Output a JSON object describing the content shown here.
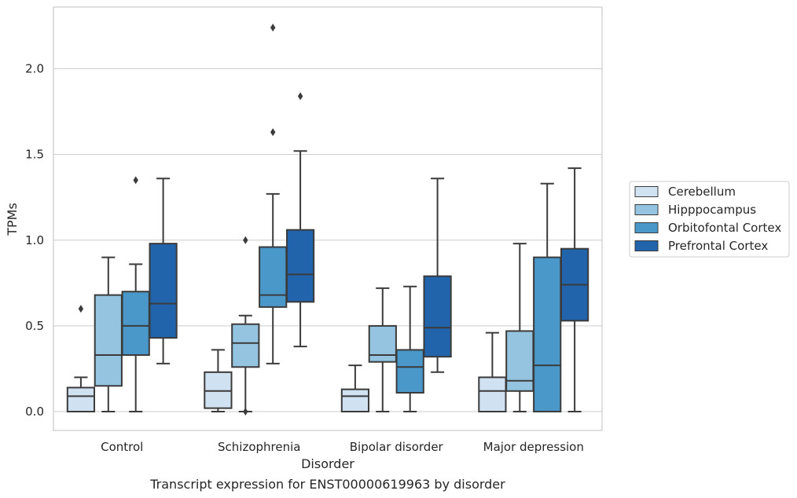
{
  "caption": "Transcript expression for ENST00000619963 by disorder",
  "chart_data": {
    "type": "box",
    "title": "",
    "xlabel": "Disorder",
    "ylabel": "TPMs",
    "ylim": [
      -0.11,
      2.36
    ],
    "yticks": [
      0.0,
      0.5,
      1.0,
      1.5,
      2.0
    ],
    "ytick_labels": [
      "0.0",
      "0.5",
      "1.0",
      "1.5",
      "2.0"
    ],
    "grid": "horizontal",
    "legend_position": "right",
    "categories": [
      "Control",
      "Schizophrenia",
      "Bipolar disorder",
      "Major depression"
    ],
    "series": [
      {
        "name": "Cerebellum",
        "color": "#d0e1f2",
        "boxes": [
          {
            "whisker_low": 0.0,
            "q1": 0.0,
            "median": 0.09,
            "q3": 0.14,
            "whisker_high": 0.2,
            "outliers": [
              0.6
            ]
          },
          {
            "whisker_low": 0.0,
            "q1": 0.02,
            "median": 0.12,
            "q3": 0.23,
            "whisker_high": 0.36,
            "outliers": []
          },
          {
            "whisker_low": 0.0,
            "q1": 0.0,
            "median": 0.09,
            "q3": 0.13,
            "whisker_high": 0.27,
            "outliers": []
          },
          {
            "whisker_low": 0.0,
            "q1": 0.0,
            "median": 0.12,
            "q3": 0.2,
            "whisker_high": 0.46,
            "outliers": []
          }
        ]
      },
      {
        "name": "Hipppocampus",
        "color": "#94c4df",
        "boxes": [
          {
            "whisker_low": 0.0,
            "q1": 0.15,
            "median": 0.33,
            "q3": 0.68,
            "whisker_high": 0.9,
            "outliers": []
          },
          {
            "whisker_low": 0.0,
            "q1": 0.26,
            "median": 0.4,
            "q3": 0.51,
            "whisker_high": 0.56,
            "outliers": [
              1.0,
              0.0
            ]
          },
          {
            "whisker_low": 0.0,
            "q1": 0.29,
            "median": 0.33,
            "q3": 0.5,
            "whisker_high": 0.72,
            "outliers": []
          },
          {
            "whisker_low": 0.0,
            "q1": 0.12,
            "median": 0.18,
            "q3": 0.47,
            "whisker_high": 0.98,
            "outliers": []
          }
        ]
      },
      {
        "name": "Orbitofontal Cortex",
        "color": "#4a98c9",
        "boxes": [
          {
            "whisker_low": 0.0,
            "q1": 0.33,
            "median": 0.5,
            "q3": 0.7,
            "whisker_high": 0.86,
            "outliers": [
              1.35
            ]
          },
          {
            "whisker_low": 0.28,
            "q1": 0.61,
            "median": 0.68,
            "q3": 0.96,
            "whisker_high": 1.27,
            "outliers": [
              2.24,
              1.63
            ]
          },
          {
            "whisker_low": 0.0,
            "q1": 0.11,
            "median": 0.26,
            "q3": 0.36,
            "whisker_high": 0.73,
            "outliers": []
          },
          {
            "whisker_low": 0.0,
            "q1": 0.0,
            "median": 0.27,
            "q3": 0.9,
            "whisker_high": 1.33,
            "outliers": []
          }
        ]
      },
      {
        "name": "Prefrontal Cortex",
        "color": "#2164ab",
        "boxes": [
          {
            "whisker_low": 0.28,
            "q1": 0.43,
            "median": 0.63,
            "q3": 0.98,
            "whisker_high": 1.36,
            "outliers": []
          },
          {
            "whisker_low": 0.38,
            "q1": 0.64,
            "median": 0.8,
            "q3": 1.06,
            "whisker_high": 1.52,
            "outliers": [
              1.84
            ]
          },
          {
            "whisker_low": 0.23,
            "q1": 0.32,
            "median": 0.49,
            "q3": 0.79,
            "whisker_high": 1.36,
            "outliers": []
          },
          {
            "whisker_low": 0.0,
            "q1": 0.53,
            "median": 0.74,
            "q3": 0.95,
            "whisker_high": 1.42,
            "outliers": []
          }
        ]
      }
    ]
  }
}
